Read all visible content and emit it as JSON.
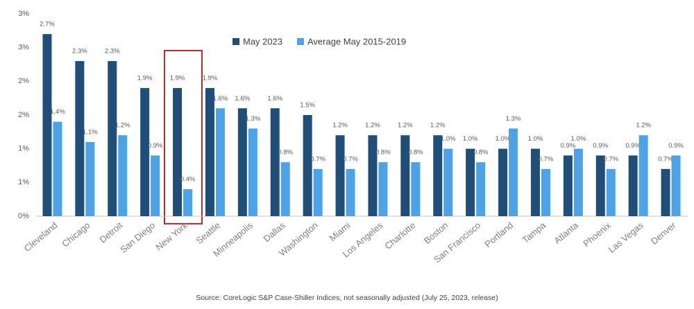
{
  "chart_data": {
    "type": "bar",
    "categories": [
      "Cleveland",
      "Chicago",
      "Detroit",
      "San Diego",
      "New York",
      "Seattle",
      "Minneapolis",
      "Dallas",
      "Washington",
      "Miami",
      "Los Angeles",
      "Charlotte",
      "Boston",
      "San Francisco",
      "Portland",
      "Tampa",
      "Atlanta",
      "Phoenix",
      "Las Vegas",
      "Denver"
    ],
    "series": [
      {
        "name": "May 2023",
        "color": "#1f4e79",
        "values": [
          2.7,
          2.3,
          2.3,
          1.9,
          1.9,
          1.9,
          1.6,
          1.6,
          1.5,
          1.2,
          1.2,
          1.2,
          1.2,
          1.0,
          1.0,
          1.0,
          0.9,
          0.9,
          0.9,
          0.7
        ],
        "value_labels": [
          "2.7%",
          "2.3%",
          "2.3%",
          "1.9%",
          "1.9%",
          "1.9%",
          "1.6%",
          "1.6%",
          "1.5%",
          "1.2%",
          "1.2%",
          "1.2%",
          "1.2%",
          "1.0%",
          "1.0%",
          "1.0%",
          "0.9%",
          "0.9%",
          "0.9%",
          "0.7%"
        ]
      },
      {
        "name": "Average May 2015-2019",
        "color": "#4ea3e6",
        "values": [
          1.4,
          1.1,
          1.2,
          0.9,
          0.4,
          1.6,
          1.3,
          0.8,
          0.7,
          0.7,
          0.8,
          0.8,
          1.0,
          0.8,
          1.3,
          0.7,
          1.0,
          0.7,
          1.2,
          0.9
        ],
        "value_labels": [
          "1.4%",
          "1.1%",
          "1.2%",
          "0.9%",
          "0.4%",
          "1.6%",
          "1.3%",
          "0.8%",
          "0.7%",
          "0.7%",
          "0.8%",
          "0.8%",
          "1.0%",
          "0.8%",
          "1.3%",
          "0.7%",
          "1.0%",
          "0.7%",
          "1.2%",
          "0.9%"
        ]
      }
    ],
    "ylim": [
      0,
      3
    ],
    "yticks": [
      {
        "value": 0,
        "label": "0%"
      },
      {
        "value": 0.5,
        "label": "1%"
      },
      {
        "value": 1,
        "label": "1%"
      },
      {
        "value": 1.5,
        "label": "2%"
      },
      {
        "value": 2,
        "label": "2%"
      },
      {
        "value": 2.5,
        "label": "3%"
      },
      {
        "value": 3,
        "label": "3%"
      }
    ],
    "grid": false,
    "legend": "top",
    "source": "Source: CoreLogic S&P Case-Shiller Indices, not seasonally adjusted (July 25, 2023, release)"
  }
}
